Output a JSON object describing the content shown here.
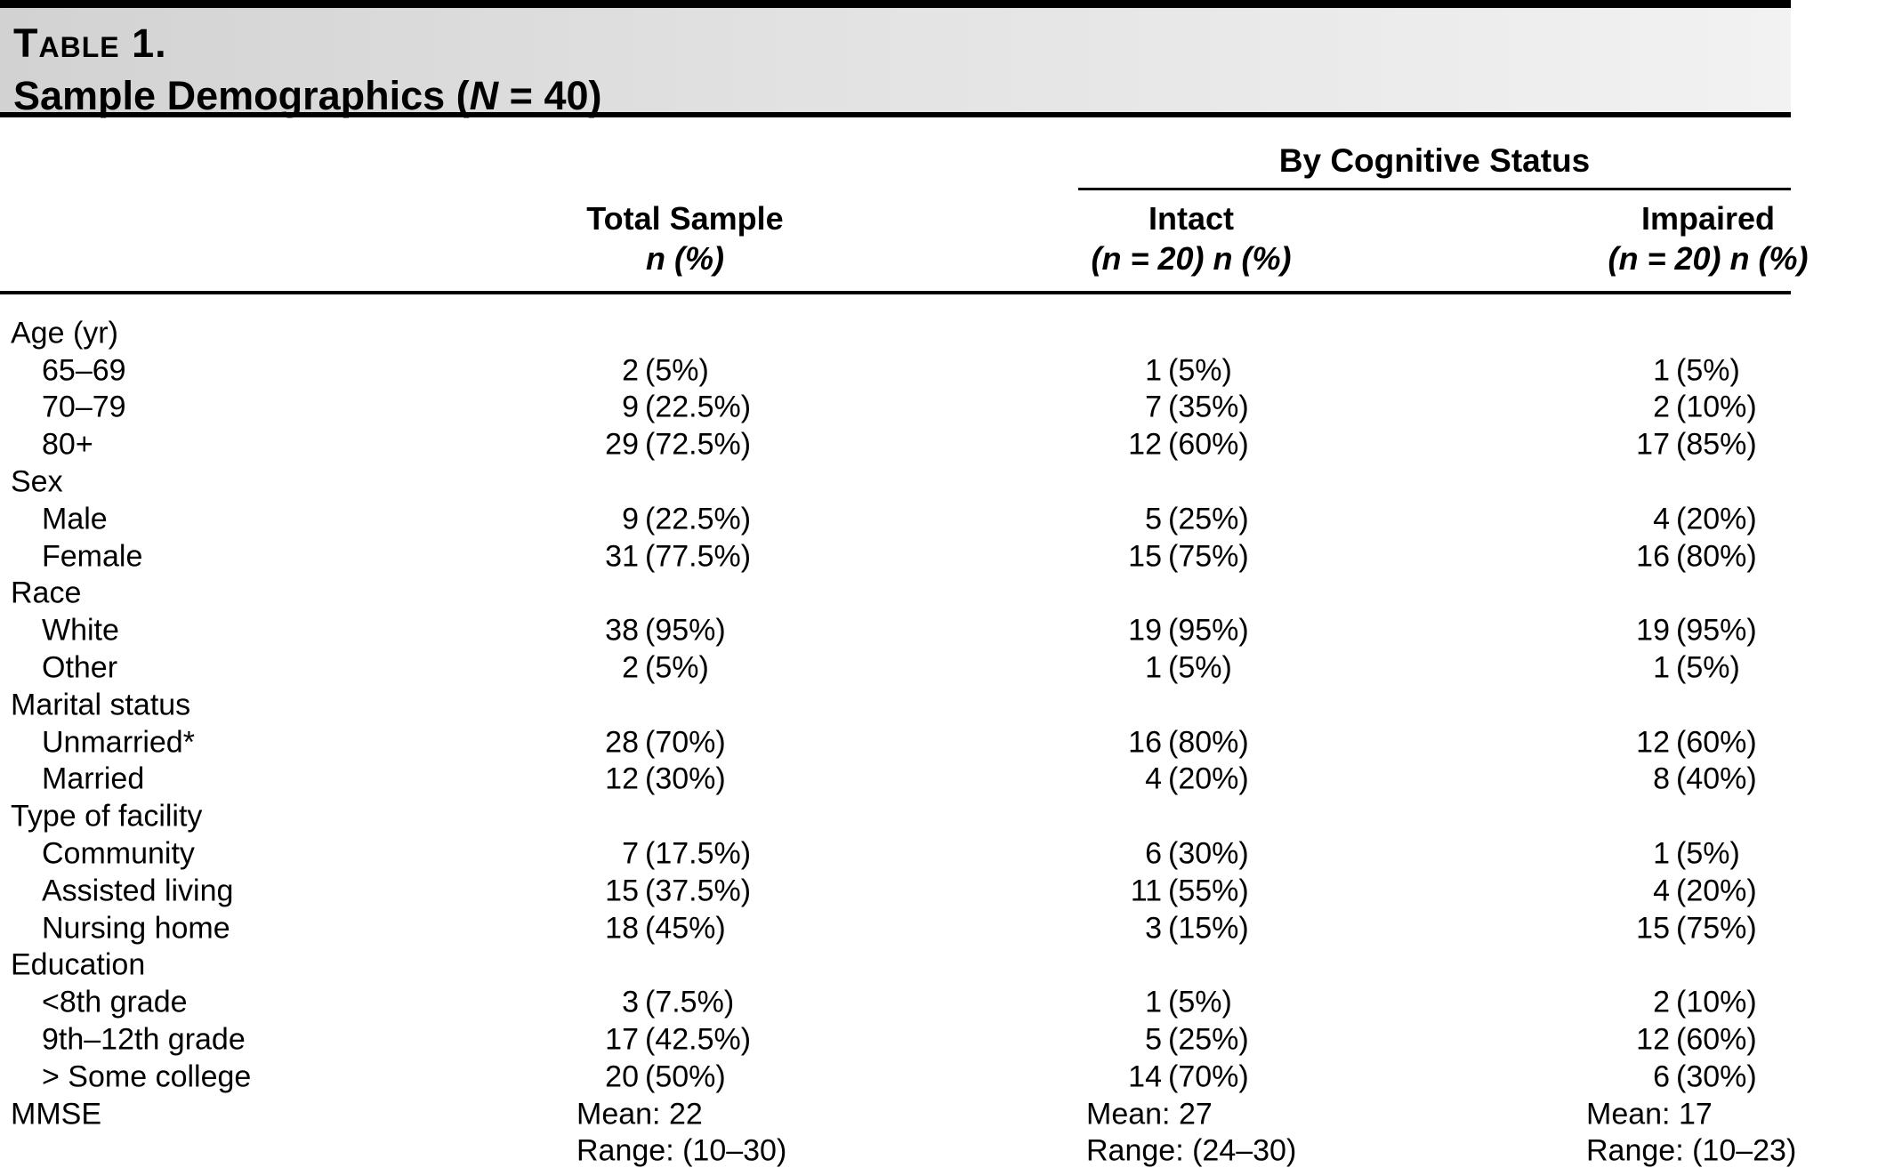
{
  "title": {
    "table_number": "Table 1.",
    "subtitle_pre": "Sample Demographics (",
    "subtitle_var": "N",
    "subtitle_post": " = 40)"
  },
  "header": {
    "spanner": "By Cognitive Status",
    "columns": {
      "total": {
        "line1": "Total Sample",
        "line2": "n (%)"
      },
      "intact": {
        "line1": "Intact",
        "line2": "(n = 20) n (%)"
      },
      "impaired": {
        "line1": "Impaired",
        "line2": "(n = 20) n (%)"
      }
    }
  },
  "table": {
    "rows": [
      {
        "label": "Age (yr)",
        "indent": false
      },
      {
        "label": "65–69",
        "indent": true,
        "n1": "2",
        "p1": "(5%)",
        "n2": "1",
        "p2": "(5%)",
        "n3": "1",
        "p3": "(5%)"
      },
      {
        "label": "70–79",
        "indent": true,
        "n1": "9",
        "p1": "(22.5%)",
        "n2": "7",
        "p2": "(35%)",
        "n3": "2",
        "p3": "(10%)"
      },
      {
        "label": "80+",
        "indent": true,
        "n1": "29",
        "p1": "(72.5%)",
        "n2": "12",
        "p2": "(60%)",
        "n3": "17",
        "p3": "(85%)"
      },
      {
        "label": "Sex",
        "indent": false
      },
      {
        "label": "Male",
        "indent": true,
        "n1": "9",
        "p1": "(22.5%)",
        "n2": "5",
        "p2": "(25%)",
        "n3": "4",
        "p3": "(20%)"
      },
      {
        "label": "Female",
        "indent": true,
        "n1": "31",
        "p1": "(77.5%)",
        "n2": "15",
        "p2": "(75%)",
        "n3": "16",
        "p3": "(80%)"
      },
      {
        "label": "Race",
        "indent": false
      },
      {
        "label": "White",
        "indent": true,
        "n1": "38",
        "p1": "(95%)",
        "n2": "19",
        "p2": "(95%)",
        "n3": "19",
        "p3": "(95%)"
      },
      {
        "label": "Other",
        "indent": true,
        "n1": "2",
        "p1": "(5%)",
        "n2": "1",
        "p2": "(5%)",
        "n3": "1",
        "p3": "(5%)"
      },
      {
        "label": "Marital status",
        "indent": false
      },
      {
        "label": "Unmarried*",
        "indent": true,
        "n1": "28",
        "p1": "(70%)",
        "n2": "16",
        "p2": "(80%)",
        "n3": "12",
        "p3": "(60%)"
      },
      {
        "label": "Married",
        "indent": true,
        "n1": "12",
        "p1": "(30%)",
        "n2": "4",
        "p2": "(20%)",
        "n3": "8",
        "p3": "(40%)"
      },
      {
        "label": "Type of facility",
        "indent": false
      },
      {
        "label": "Community",
        "indent": true,
        "n1": "7",
        "p1": "(17.5%)",
        "n2": "6",
        "p2": "(30%)",
        "n3": "1",
        "p3": "(5%)"
      },
      {
        "label": "Assisted living",
        "indent": true,
        "n1": "15",
        "p1": "(37.5%)",
        "n2": "11",
        "p2": "(55%)",
        "n3": "4",
        "p3": "(20%)"
      },
      {
        "label": "Nursing home",
        "indent": true,
        "n1": "18",
        "p1": "(45%)",
        "n2": "3",
        "p2": "(15%)",
        "n3": "15",
        "p3": "(75%)"
      },
      {
        "label": "Education",
        "indent": false
      },
      {
        "label": "<8th grade",
        "indent": true,
        "n1": "3",
        "p1": "(7.5%)",
        "n2": "1",
        "p2": "(5%)",
        "n3": "2",
        "p3": "(10%)"
      },
      {
        "label": "9th–12th grade",
        "indent": true,
        "n1": "17",
        "p1": "(42.5%)",
        "n2": "5",
        "p2": "(25%)",
        "n3": "12",
        "p3": "(60%)"
      },
      {
        "label": "> Some college",
        "indent": true,
        "n1": "20",
        "p1": "(50%)",
        "n2": "14",
        "p2": "(70%)",
        "n3": "6",
        "p3": "(30%)"
      },
      {
        "label": "MMSE",
        "indent": false,
        "t1": "Mean: 22",
        "t2": "Mean: 27",
        "t3": "Mean: 17"
      },
      {
        "label": "",
        "indent": false,
        "t1": "Range: (10–30)",
        "t2": "Range: (24–30)",
        "t3": "Range: (10–23)"
      }
    ]
  }
}
